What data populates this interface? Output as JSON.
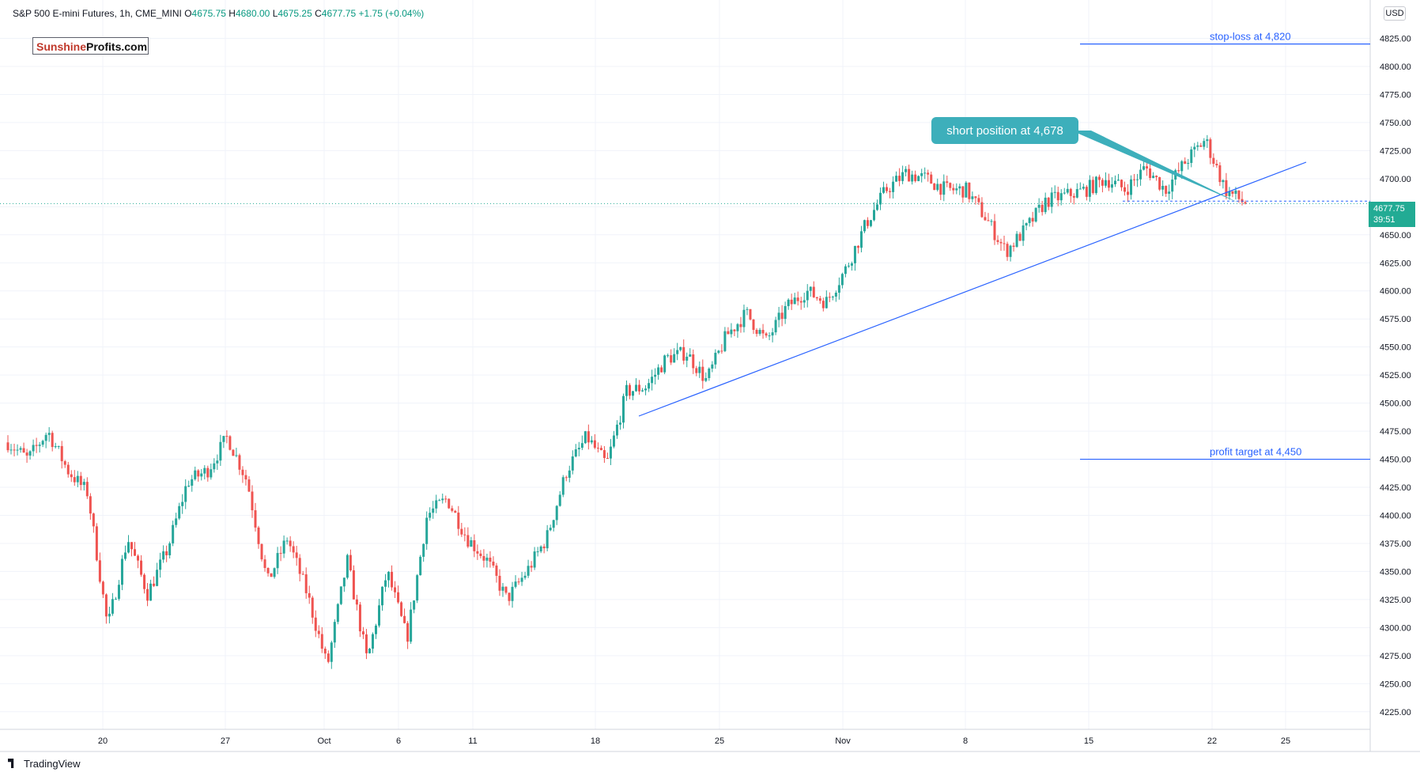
{
  "header": {
    "symbol": "S&P 500 E-mini Futures, 1h, CME_MINI",
    "o_label": "O",
    "o_val": "4675.75",
    "h_label": "H",
    "h_val": "4680.00",
    "l_label": "L",
    "l_val": "4675.25",
    "c_label": "C",
    "c_val": "4677.75",
    "change": "+1.75 (+0.04%)"
  },
  "logo": {
    "part1": "Sunshine",
    "part2": "Profits.com"
  },
  "currency": "USD",
  "price_tag": {
    "price": "4677.75",
    "countdown": "39:51"
  },
  "footer": {
    "brand": "TradingView"
  },
  "colors": {
    "up": "#26a69a",
    "down": "#ef5350",
    "annotation": "#2962ff",
    "callout": "#3dafbb"
  },
  "chart_data": {
    "type": "candlestick",
    "title": "S&P 500 E-mini Futures, 1h, CME_MINI",
    "ylim": [
      4205,
      4850
    ],
    "yticks": [
      4225,
      4250,
      4275,
      4300,
      4325,
      4350,
      4375,
      4400,
      4425,
      4450,
      4475,
      4500,
      4525,
      4550,
      4575,
      4600,
      4625,
      4650,
      4675,
      4700,
      4725,
      4750,
      4775,
      4800,
      4825
    ],
    "ytick_labels": [
      "4225.00",
      "4250.00",
      "4275.00",
      "4300.00",
      "4325.00",
      "4350.00",
      "4375.00",
      "4400.00",
      "4425.00",
      "4450.00",
      "4475.00",
      "4500.00",
      "4525.00",
      "4550.00",
      "4575.00",
      "4600.00",
      "4625.00",
      "4650.00",
      "4675.00",
      "4700.00",
      "4725.00",
      "4750.00",
      "4775.00",
      "4800.00",
      "4825.00"
    ],
    "xticks": [
      "20",
      "27",
      "Oct",
      "6",
      "11",
      "18",
      "25",
      "Nov",
      "8",
      "15",
      "22",
      "25"
    ],
    "price_path": [
      {
        "date": "Sep 16",
        "price": 4465
      },
      {
        "date": "Sep 17",
        "price": 4450
      },
      {
        "date": "Sep 17",
        "price": 4475
      },
      {
        "date": "Sep 18",
        "price": 4440
      },
      {
        "date": "Sep 19",
        "price": 4420
      },
      {
        "date": "Sep 20",
        "price": 4300
      },
      {
        "date": "Sep 21",
        "price": 4380
      },
      {
        "date": "Sep 22",
        "price": 4330
      },
      {
        "date": "Sep 23",
        "price": 4370
      },
      {
        "date": "Sep 24",
        "price": 4430
      },
      {
        "date": "Sep 26",
        "price": 4440
      },
      {
        "date": "Sep 27",
        "price": 4470
      },
      {
        "date": "Sep 28",
        "price": 4430
      },
      {
        "date": "Sep 29",
        "price": 4340
      },
      {
        "date": "Sep 30",
        "price": 4380
      },
      {
        "date": "Oct 1",
        "price": 4330
      },
      {
        "date": "Oct 1",
        "price": 4265
      },
      {
        "date": "Oct 3",
        "price": 4360
      },
      {
        "date": "Oct 4",
        "price": 4270
      },
      {
        "date": "Oct 5",
        "price": 4350
      },
      {
        "date": "Oct 6",
        "price": 4290
      },
      {
        "date": "Oct 7",
        "price": 4400
      },
      {
        "date": "Oct 8",
        "price": 4415
      },
      {
        "date": "Oct 10",
        "price": 4380
      },
      {
        "date": "Oct 11",
        "price": 4360
      },
      {
        "date": "Oct 12",
        "price": 4325
      },
      {
        "date": "Oct 13",
        "price": 4350
      },
      {
        "date": "Oct 14",
        "price": 4380
      },
      {
        "date": "Oct 15",
        "price": 4440
      },
      {
        "date": "Oct 17",
        "price": 4470
      },
      {
        "date": "Oct 18",
        "price": 4445
      },
      {
        "date": "Oct 19",
        "price": 4510
      },
      {
        "date": "Oct 20",
        "price": 4515
      },
      {
        "date": "Oct 21",
        "price": 4540
      },
      {
        "date": "Oct 22",
        "price": 4545
      },
      {
        "date": "Oct 24",
        "price": 4520
      },
      {
        "date": "Oct 25",
        "price": 4560
      },
      {
        "date": "Oct 26",
        "price": 4580
      },
      {
        "date": "Oct 27",
        "price": 4555
      },
      {
        "date": "Oct 28",
        "price": 4585
      },
      {
        "date": "Oct 29",
        "price": 4600
      },
      {
        "date": "Oct 31",
        "price": 4590
      },
      {
        "date": "Nov 1",
        "price": 4620
      },
      {
        "date": "Nov 2",
        "price": 4660
      },
      {
        "date": "Nov 3",
        "price": 4690
      },
      {
        "date": "Nov 4",
        "price": 4705
      },
      {
        "date": "Nov 5",
        "price": 4700
      },
      {
        "date": "Nov 7",
        "price": 4690
      },
      {
        "date": "Nov 8",
        "price": 4690
      },
      {
        "date": "Nov 9",
        "price": 4665
      },
      {
        "date": "Nov 10",
        "price": 4635
      },
      {
        "date": "Nov 11",
        "price": 4655
      },
      {
        "date": "Nov 12",
        "price": 4680
      },
      {
        "date": "Nov 14",
        "price": 4685
      },
      {
        "date": "Nov 15",
        "price": 4690
      },
      {
        "date": "Nov 16",
        "price": 4700
      },
      {
        "date": "Nov 17",
        "price": 4690
      },
      {
        "date": "Nov 18",
        "price": 4710
      },
      {
        "date": "Nov 19",
        "price": 4690
      },
      {
        "date": "Nov 21",
        "price": 4715
      },
      {
        "date": "Nov 22",
        "price": 4735
      },
      {
        "date": "Nov 22",
        "price": 4690
      },
      {
        "date": "Nov 23",
        "price": 4678
      }
    ],
    "last_price": 4677.75,
    "annotations": {
      "stop_loss": {
        "label": "stop-loss at 4,820",
        "price": 4820
      },
      "profit_target": {
        "label": "profit target at 4,450",
        "price": 4450
      },
      "short_position": {
        "label": "short position at 4,678",
        "price": 4678
      }
    }
  }
}
